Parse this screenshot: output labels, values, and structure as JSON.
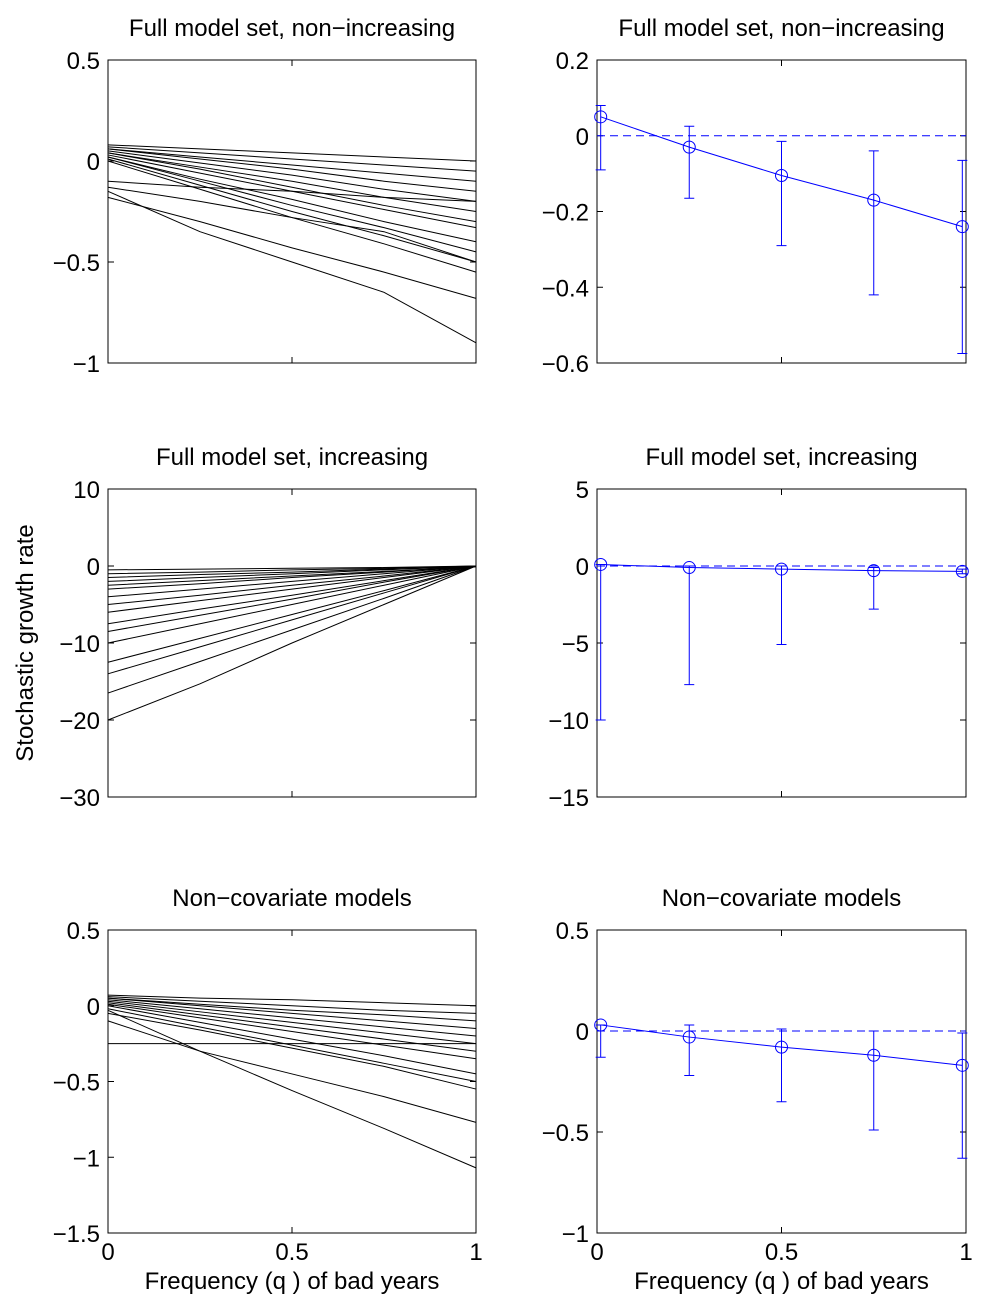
{
  "chart_data": [
    {
      "type": "line",
      "title": "Full model set, non−increasing",
      "color": "#000000",
      "x": [
        0,
        0.25,
        0.5,
        0.75,
        1
      ],
      "xlim": [
        0,
        1
      ],
      "xticks": [
        0,
        0.5,
        1
      ],
      "show_xtick_labels": false,
      "ylim": [
        -1,
        0.5
      ],
      "yticks": [
        {
          "value": -1,
          "label": "−1"
        },
        {
          "value": -0.5,
          "label": "−0.5"
        },
        0,
        0.5
      ],
      "series": [
        {
          "values": [
            0.08,
            0.06,
            0.04,
            0.02,
            0
          ]
        },
        {
          "values": [
            0.07,
            0.04,
            0.01,
            -0.02,
            -0.05
          ]
        },
        {
          "values": [
            0.06,
            0.02,
            -0.02,
            -0.06,
            -0.1
          ]
        },
        {
          "values": [
            0.06,
            0.01,
            -0.04,
            -0.1,
            -0.15
          ]
        },
        {
          "values": [
            0.05,
            -0.01,
            -0.07,
            -0.14,
            -0.2
          ]
        },
        {
          "values": [
            0.04,
            -0.03,
            -0.1,
            -0.18,
            -0.25
          ]
        },
        {
          "values": [
            0.04,
            -0.04,
            -0.13,
            -0.22,
            -0.3
          ]
        },
        {
          "values": [
            0.03,
            -0.06,
            -0.15,
            -0.24,
            -0.33
          ]
        },
        {
          "values": [
            0.02,
            -0.09,
            -0.19,
            -0.3,
            -0.4
          ]
        },
        {
          "values": [
            0.02,
            -0.1,
            -0.22,
            -0.33,
            -0.45
          ]
        },
        {
          "values": [
            0.01,
            -0.12,
            -0.25,
            -0.37,
            -0.5
          ]
        },
        {
          "values": [
            0,
            -0.14,
            -0.28,
            -0.41,
            -0.55
          ]
        },
        {
          "values": [
            -0.1,
            -0.13,
            -0.15,
            -0.18,
            -0.2
          ]
        },
        {
          "values": [
            -0.13,
            -0.2,
            -0.28,
            -0.35,
            -0.5
          ]
        },
        {
          "values": [
            -0.18,
            -0.3,
            -0.43,
            -0.55,
            -0.68
          ]
        },
        {
          "values": [
            -0.15,
            -0.35,
            -0.5,
            -0.65,
            -0.9
          ]
        }
      ]
    },
    {
      "type": "errorbar",
      "title": "Full model set, non−increasing",
      "color": "#0000ff",
      "reference_line": 0,
      "x": [
        0.01,
        0.25,
        0.5,
        0.75,
        0.99
      ],
      "xlim": [
        0,
        1
      ],
      "xticks": [
        0,
        0.5,
        1
      ],
      "show_xtick_labels": false,
      "ylim": [
        -0.6,
        0.2
      ],
      "yticks": [
        {
          "value": -0.6,
          "label": "−0.6"
        },
        {
          "value": -0.4,
          "label": "−0.4"
        },
        {
          "value": -0.2,
          "label": "−0.2"
        },
        0,
        0.2
      ],
      "values": [
        0.05,
        -0.03,
        -0.105,
        -0.17,
        -0.24
      ],
      "lower": [
        -0.09,
        -0.165,
        -0.29,
        -0.42,
        -0.575
      ],
      "upper": [
        0.08,
        0.025,
        -0.015,
        -0.04,
        -0.065
      ]
    },
    {
      "type": "line",
      "title": "Full model set, increasing",
      "color": "#000000",
      "ylabel": "Stochastic growth rate",
      "x": [
        0,
        0.25,
        0.5,
        0.75,
        1
      ],
      "xlim": [
        0,
        1
      ],
      "xticks": [
        0,
        0.5,
        1
      ],
      "show_xtick_labels": false,
      "ylim": [
        -30,
        10
      ],
      "yticks": [
        {
          "value": -30,
          "label": "−30"
        },
        {
          "value": -20,
          "label": "−20"
        },
        {
          "value": -10,
          "label": "−10"
        },
        0,
        10
      ],
      "series": [
        {
          "values": [
            -0.5,
            -0.4,
            -0.3,
            -0.2,
            0
          ]
        },
        {
          "values": [
            -1,
            -0.8,
            -0.5,
            -0.3,
            0
          ]
        },
        {
          "values": [
            -1.5,
            -1.1,
            -0.8,
            -0.4,
            -0.1
          ]
        },
        {
          "values": [
            -2,
            -1.5,
            -1,
            -0.5,
            0
          ]
        },
        {
          "values": [
            -2.5,
            -1.9,
            -1.3,
            -0.7,
            -0.1
          ]
        },
        {
          "values": [
            -3,
            -2.3,
            -1.5,
            -0.8,
            0
          ]
        },
        {
          "values": [
            -4,
            -3,
            -2,
            -1,
            0
          ]
        },
        {
          "values": [
            -5,
            -3.8,
            -2.5,
            -1.3,
            0
          ]
        },
        {
          "values": [
            -6,
            -4.5,
            -3,
            -1.5,
            0
          ]
        },
        {
          "values": [
            -7.5,
            -5.6,
            -3.8,
            -1.9,
            0
          ]
        },
        {
          "values": [
            -8.5,
            -6.4,
            -4.3,
            -2.1,
            0
          ]
        },
        {
          "values": [
            -10,
            -7.5,
            -5,
            -2.5,
            0
          ]
        },
        {
          "values": [
            -12.5,
            -9.4,
            -6.3,
            -3.2,
            0
          ]
        },
        {
          "values": [
            -14,
            -10.5,
            -7,
            -3.5,
            0
          ]
        },
        {
          "values": [
            -16.5,
            -12.4,
            -8.3,
            -4.2,
            0
          ]
        },
        {
          "values": [
            -20,
            -15.3,
            -10,
            -5,
            0
          ]
        }
      ]
    },
    {
      "type": "errorbar",
      "title": "Full model set, increasing",
      "color": "#0000ff",
      "reference_line": 0,
      "x": [
        0.01,
        0.25,
        0.5,
        0.75,
        0.99
      ],
      "xlim": [
        0,
        1
      ],
      "xticks": [
        0,
        0.5,
        1
      ],
      "show_xtick_labels": false,
      "ylim": [
        -15,
        5
      ],
      "yticks": [
        {
          "value": -15,
          "label": "−15"
        },
        {
          "value": -10,
          "label": "−10"
        },
        {
          "value": -5,
          "label": "−5"
        },
        0,
        5
      ],
      "values": [
        0.1,
        -0.1,
        -0.2,
        -0.3,
        -0.35
      ],
      "lower": [
        -10,
        -7.7,
        -5.1,
        -2.8,
        -0.5
      ],
      "upper": [
        0.1,
        0,
        0,
        -0.1,
        -0.2
      ]
    },
    {
      "type": "line",
      "title": "Non−covariate models",
      "color": "#000000",
      "xlabel": "Frequency (q ) of bad years",
      "x": [
        0,
        0.25,
        0.5,
        0.75,
        1
      ],
      "xlim": [
        0,
        1
      ],
      "xticks": [
        0,
        0.5,
        1
      ],
      "show_xtick_labels": true,
      "ylim": [
        -1.5,
        0.5
      ],
      "yticks": [
        {
          "value": -1.5,
          "label": "−1.5"
        },
        {
          "value": -1,
          "label": "−1"
        },
        {
          "value": -0.5,
          "label": "−0.5"
        },
        0,
        0.5
      ],
      "series": [
        {
          "values": [
            0.07,
            0.05,
            0.04,
            0.02,
            0
          ]
        },
        {
          "values": [
            0.06,
            0.03,
            0,
            -0.03,
            -0.05
          ]
        },
        {
          "values": [
            0.05,
            0.01,
            -0.03,
            -0.06,
            -0.1
          ]
        },
        {
          "values": [
            0.05,
            0,
            -0.05,
            -0.1,
            -0.15
          ]
        },
        {
          "values": [
            0.04,
            -0.02,
            -0.08,
            -0.14,
            -0.2
          ]
        },
        {
          "values": [
            0.03,
            -0.04,
            -0.11,
            -0.18,
            -0.25
          ]
        },
        {
          "values": [
            0.02,
            -0.06,
            -0.14,
            -0.22,
            -0.3
          ]
        },
        {
          "values": [
            0.01,
            -0.08,
            -0.17,
            -0.26,
            -0.35
          ]
        },
        {
          "values": [
            0,
            -0.11,
            -0.22,
            -0.33,
            -0.45
          ]
        },
        {
          "values": [
            -0.02,
            -0.14,
            -0.26,
            -0.38,
            -0.5
          ]
        },
        {
          "values": [
            -0.05,
            -0.16,
            -0.28,
            -0.4,
            -0.55
          ]
        },
        {
          "values": [
            -0.25,
            -0.25,
            -0.25,
            -0.25,
            -0.25
          ]
        },
        {
          "values": [
            -0.1,
            -0.3,
            -0.45,
            -0.6,
            -0.77
          ]
        },
        {
          "values": [
            -0.03,
            -0.3,
            -0.56,
            -0.81,
            -1.07
          ]
        }
      ]
    },
    {
      "type": "errorbar",
      "title": "Non−covariate models",
      "color": "#0000ff",
      "reference_line": 0,
      "xlabel": "Frequency (q ) of bad years",
      "x": [
        0.01,
        0.25,
        0.5,
        0.75,
        0.99
      ],
      "xlim": [
        0,
        1
      ],
      "xticks": [
        0,
        0.5,
        1
      ],
      "show_xtick_labels": true,
      "ylim": [
        -1,
        0.5
      ],
      "yticks": [
        {
          "value": -1,
          "label": "−1"
        },
        {
          "value": -0.5,
          "label": "−0.5"
        },
        0,
        0.5
      ],
      "values": [
        0.03,
        -0.03,
        -0.08,
        -0.12,
        -0.17
      ],
      "lower": [
        -0.13,
        -0.22,
        -0.35,
        -0.49,
        -0.63
      ],
      "upper": [
        0.03,
        0.03,
        0.01,
        0,
        -0.01
      ]
    }
  ]
}
